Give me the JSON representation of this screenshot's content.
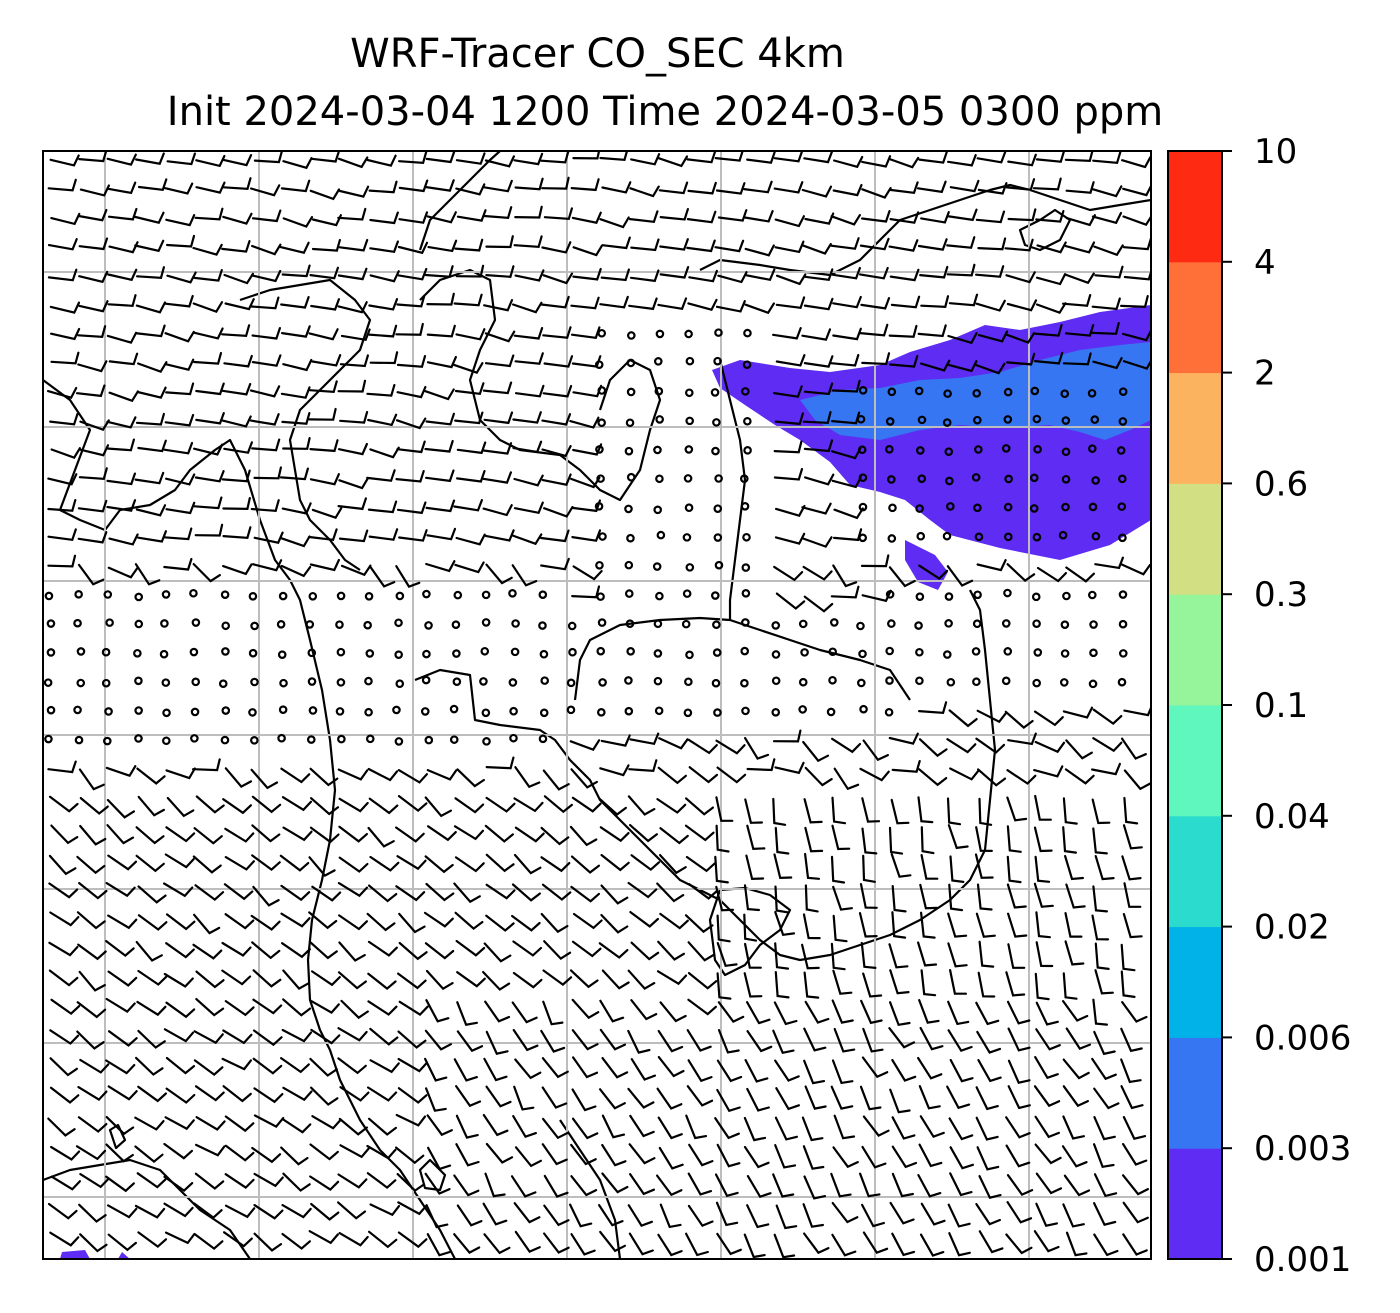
{
  "title": {
    "line1": "WRF-Tracer CO_SEC 4km",
    "line2": "Init 2024-03-04 1200 Time 2024-03-05 0300 ppm"
  },
  "colorbar": {
    "levels": [
      "0.001",
      "0.003",
      "0.006",
      "0.02",
      "0.04",
      "0.1",
      "0.3",
      "0.6",
      "2",
      "4",
      "10"
    ],
    "colors": [
      "#5e2cf2",
      "#3776f2",
      "#00b2e8",
      "#2bdbce",
      "#5ff7bd",
      "#96f59a",
      "#d2df83",
      "#fcb360",
      "#ff7039",
      "#ff2a12"
    ]
  },
  "map": {
    "plume_color": "#5e2cf2",
    "plume_inner_color": "#3776f2",
    "grid_color": "#bdbdbd",
    "coast_color": "#000000"
  }
}
